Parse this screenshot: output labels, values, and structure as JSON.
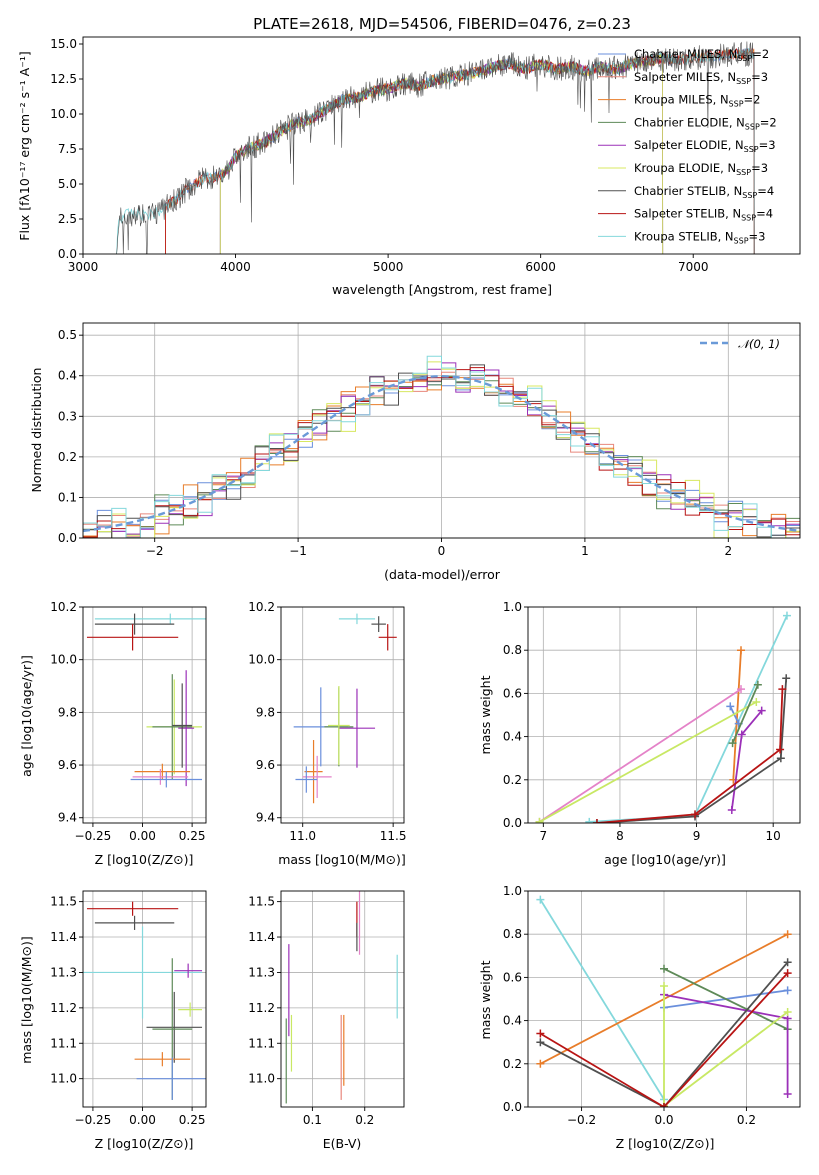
{
  "colors": {
    "chabrier_miles": "#6a8fdc",
    "salpeter_miles": "#e8877c",
    "kroupa_miles": "#e87d2a",
    "chabrier_elodie": "#5e8a58",
    "salpeter_elodie": "#9b30b8",
    "kroupa_elodie": "#d8e860",
    "chabrier_stelib": "#505050",
    "salpeter_stelib": "#b81414",
    "kroupa_stelib": "#84d8dc",
    "pink": "#e482c8",
    "lime": "#c8e864",
    "purple": "#9b30b8"
  },
  "chart_data": [
    {
      "id": "spectrum",
      "type": "line",
      "title": "PLATE=2618, MJD=54506, FIBERID=0476, z=0.23",
      "xlabel": "wavelength [Angstrom, rest frame]",
      "ylabel": "Flux [fλ10⁻¹⁷ erg cm⁻² s⁻¹ A⁻¹]",
      "xlim": [
        3000,
        7700
      ],
      "ylim": [
        0,
        15.5
      ],
      "xticks": [
        "3000",
        "4000",
        "5000",
        "6000",
        "7000"
      ],
      "yticks": [
        "0.0",
        "2.5",
        "5.0",
        "7.5",
        "10.0",
        "12.5",
        "15.0"
      ],
      "legend_position": "top-right",
      "grid": false,
      "envelope": [
        [
          3220,
          0.0
        ],
        [
          3230,
          2.4
        ],
        [
          3300,
          2.9
        ],
        [
          3400,
          2.8
        ],
        [
          3500,
          3.0
        ],
        [
          3600,
          3.8
        ],
        [
          3700,
          4.8
        ],
        [
          3800,
          5.4
        ],
        [
          3900,
          5.6
        ],
        [
          3950,
          6.0
        ],
        [
          4000,
          7.0
        ],
        [
          4100,
          7.6
        ],
        [
          4200,
          8.0
        ],
        [
          4300,
          8.8
        ],
        [
          4400,
          9.4
        ],
        [
          4500,
          9.6
        ],
        [
          4600,
          10.4
        ],
        [
          4700,
          11.0
        ],
        [
          4800,
          11.2
        ],
        [
          4900,
          11.6
        ],
        [
          5000,
          11.8
        ],
        [
          5100,
          12.2
        ],
        [
          5200,
          12.0
        ],
        [
          5300,
          12.4
        ],
        [
          5400,
          12.6
        ],
        [
          5500,
          12.8
        ],
        [
          5600,
          13.0
        ],
        [
          5700,
          13.4
        ],
        [
          5800,
          13.6
        ],
        [
          5900,
          13.2
        ],
        [
          6000,
          13.6
        ],
        [
          6100,
          13.2
        ],
        [
          6200,
          13.4
        ],
        [
          6300,
          13.0
        ],
        [
          6400,
          13.4
        ],
        [
          6500,
          13.2
        ],
        [
          6600,
          13.6
        ],
        [
          6700,
          13.8
        ],
        [
          6800,
          14.0
        ],
        [
          6900,
          13.8
        ],
        [
          7000,
          14.0
        ],
        [
          7100,
          14.1
        ],
        [
          7200,
          14.2
        ],
        [
          7300,
          14.3
        ],
        [
          7380,
          14.3
        ]
      ],
      "series_ends": [
        {
          "name": "Chabrier MILES, N$_{SSP}$=2",
          "label_text": "Chabrier MILES, N",
          "label_sub": "SSP",
          "label_tail": "=2",
          "color_key": "chabrier_miles",
          "start": 3540,
          "end": 7400
        },
        {
          "name": "Salpeter MILES, N$_{SSP}$=3",
          "label_text": "Salpeter MILES, N",
          "label_sub": "SSP",
          "label_tail": "=3",
          "color_key": "salpeter_miles",
          "start": 3540,
          "end": 7400
        },
        {
          "name": "Kroupa MILES, N$_{SSP}$=2",
          "label_text": "Kroupa MILES, N",
          "label_sub": "SSP",
          "label_tail": "=2",
          "color_key": "kroupa_miles",
          "start": 3540,
          "end": 7400
        },
        {
          "name": "Chabrier ELODIE, N$_{SSP}$=2",
          "label_text": "Chabrier ELODIE, N",
          "label_sub": "SSP",
          "label_tail": "=2",
          "color_key": "chabrier_elodie",
          "start": 3900,
          "end": 6800
        },
        {
          "name": "Salpeter ELODIE, N$_{SSP}$=3",
          "label_text": "Salpeter ELODIE, N",
          "label_sub": "SSP",
          "label_tail": "=3",
          "color_key": "salpeter_elodie",
          "start": 3900,
          "end": 6800
        },
        {
          "name": "Kroupa ELODIE, N$_{SSP}$=3",
          "label_text": "Kroupa ELODIE, N",
          "label_sub": "SSP",
          "label_tail": "=3",
          "color_key": "kroupa_elodie",
          "start": 3900,
          "end": 6800
        },
        {
          "name": "Chabrier STELIB, N$_{SSP}$=4",
          "label_text": "Chabrier STELIB, N",
          "label_sub": "SSP",
          "label_tail": "=4",
          "color_key": "chabrier_stelib",
          "start": 3220,
          "end": 7400
        },
        {
          "name": "Salpeter STELIB, N$_{SSP}$=4",
          "label_text": "Salpeter STELIB, N",
          "label_sub": "SSP",
          "label_tail": "=4",
          "color_key": "salpeter_stelib",
          "start": 3540,
          "end": 7400
        },
        {
          "name": "Kroupa STELIB, N$_{SSP}$=3",
          "label_text": "Kroupa STELIB, N",
          "label_sub": "SSP",
          "label_tail": "=3",
          "color_key": "kroupa_stelib",
          "start": 3220,
          "end": 7400
        }
      ]
    },
    {
      "id": "residuals",
      "type": "bar",
      "xlabel": "(data-model)/error",
      "ylabel": "Normed distribution",
      "xlim": [
        -2.5,
        2.5
      ],
      "ylim": [
        0,
        0.53
      ],
      "xticks": [
        "−2",
        "−1",
        "0",
        "1",
        "2"
      ],
      "yticks": [
        "0.0",
        "0.1",
        "0.2",
        "0.3",
        "0.4",
        "0.5"
      ],
      "grid": true,
      "legend_position": "top-right",
      "reference_curve": {
        "name": "𝒩(0, 1)",
        "color": "#6a9ad8"
      },
      "bin_width": 0.1,
      "bin_start": -2.5,
      "histograms": [
        {
          "color_key": "chabrier_miles",
          "offset": 0.01
        },
        {
          "color_key": "salpeter_miles",
          "offset": -0.01
        },
        {
          "color_key": "kroupa_miles",
          "offset": 0.02
        },
        {
          "color_key": "chabrier_elodie",
          "offset": -0.02
        },
        {
          "color_key": "salpeter_elodie",
          "offset": 0.015
        },
        {
          "color_key": "kroupa_elodie",
          "offset": 0.03
        },
        {
          "color_key": "chabrier_stelib",
          "offset": 0.02
        },
        {
          "color_key": "salpeter_stelib",
          "offset": 0.005
        },
        {
          "color_key": "kroupa_stelib",
          "offset": -0.015
        }
      ]
    },
    {
      "id": "age_vs_z",
      "type": "scatter",
      "xlabel": "Z [log10(Z/Z⊙)]",
      "ylabel": "age  [log10(age/yr)]",
      "xlim": [
        -0.3,
        0.32
      ],
      "ylim": [
        9.38,
        10.2
      ],
      "xticks": [
        "−0.25",
        "0.00",
        "0.25"
      ],
      "yticks": [
        "9.4",
        "9.6",
        "9.8",
        "10.0",
        "10.2"
      ],
      "grid": true,
      "points": [
        {
          "x": 0.14,
          "y": 10.155,
          "xerr": 0.38,
          "yerr": 0.02,
          "color_key": "kroupa_stelib"
        },
        {
          "x": -0.04,
          "y": 10.135,
          "xerr": 0.2,
          "yerr": 0.04,
          "color_key": "chabrier_stelib"
        },
        {
          "x": -0.05,
          "y": 10.085,
          "xerr": 0.23,
          "yerr": 0.05,
          "color_key": "salpeter_stelib"
        },
        {
          "x": 0.16,
          "y": 9.745,
          "xerr": 0.14,
          "yerr": 0.18,
          "color_key": "lime"
        },
        {
          "x": 0.15,
          "y": 9.745,
          "xerr": 0.1,
          "yerr": 0.2,
          "color_key": "chabrier_elodie"
        },
        {
          "x": 0.22,
          "y": 9.74,
          "xerr": 0.04,
          "yerr": 0.22,
          "color_key": "salpeter_elodie"
        },
        {
          "x": 0.2,
          "y": 9.75,
          "xerr": 0.05,
          "yerr": 0.16,
          "color_key": "chabrier_stelib"
        },
        {
          "x": 0.1,
          "y": 9.575,
          "xerr": 0.14,
          "yerr": 0.03,
          "color_key": "kroupa_miles"
        },
        {
          "x": 0.09,
          "y": 9.555,
          "xerr": 0.14,
          "yerr": 0.03,
          "color_key": "pink"
        },
        {
          "x": 0.12,
          "y": 9.545,
          "xerr": 0.18,
          "yerr": 0.03,
          "color_key": "chabrier_miles"
        }
      ]
    },
    {
      "id": "age_vs_mass",
      "type": "scatter",
      "xlabel": "mass [log10(M/M⊙)]",
      "xlim": [
        10.88,
        11.56
      ],
      "ylim": [
        9.38,
        10.2
      ],
      "xticks": [
        "11.0",
        "11.5"
      ],
      "yticks": [
        "9.4",
        "9.6",
        "9.8",
        "10.0",
        "10.2"
      ],
      "grid": true,
      "points": [
        {
          "x": 11.3,
          "y": 10.155,
          "xerr": 0.1,
          "yerr": 0.02,
          "color_key": "kroupa_stelib"
        },
        {
          "x": 11.42,
          "y": 10.135,
          "xerr": 0.04,
          "yerr": 0.03,
          "color_key": "chabrier_stelib"
        },
        {
          "x": 11.47,
          "y": 10.085,
          "xerr": 0.05,
          "yerr": 0.05,
          "color_key": "salpeter_stelib"
        },
        {
          "x": 11.1,
          "y": 9.745,
          "xerr": 0.15,
          "yerr": 0.15,
          "color_key": "chabrier_miles"
        },
        {
          "x": 11.2,
          "y": 9.745,
          "xerr": 0.08,
          "yerr": 0.15,
          "color_key": "chabrier_elodie"
        },
        {
          "x": 11.3,
          "y": 9.74,
          "xerr": 0.1,
          "yerr": 0.15,
          "color_key": "salpeter_elodie"
        },
        {
          "x": 11.2,
          "y": 9.75,
          "xerr": 0.06,
          "yerr": 0.15,
          "color_key": "lime"
        },
        {
          "x": 11.06,
          "y": 9.575,
          "xerr": 0.05,
          "yerr": 0.12,
          "color_key": "kroupa_miles"
        },
        {
          "x": 11.08,
          "y": 9.555,
          "xerr": 0.08,
          "yerr": 0.08,
          "color_key": "pink"
        },
        {
          "x": 11.02,
          "y": 9.545,
          "xerr": 0.06,
          "yerr": 0.05,
          "color_key": "chabrier_miles"
        }
      ]
    },
    {
      "id": "weight_vs_age",
      "type": "line",
      "xlabel": "age  [log10(age/yr)]",
      "ylabel": "mass weight",
      "xlim": [
        6.8,
        10.35
      ],
      "ylim": [
        0,
        1
      ],
      "xticks": [
        "7",
        "8",
        "9",
        "10"
      ],
      "yticks": [
        "0.0",
        "0.2",
        "0.4",
        "0.6",
        "0.8",
        "1.0"
      ],
      "grid": true,
      "series": [
        {
          "color_key": "kroupa_stelib",
          "x": [
            7.6,
            8.98,
            10.18
          ],
          "y": [
            0.005,
            0.035,
            0.96
          ]
        },
        {
          "color_key": "kroupa_miles",
          "x": [
            9.48,
            9.58
          ],
          "y": [
            0.2,
            0.8
          ]
        },
        {
          "color_key": "chabrier_miles",
          "x": [
            9.44,
            9.55
          ],
          "y": [
            0.54,
            0.46
          ]
        },
        {
          "color_key": "pink",
          "x": [
            6.95,
            9.58
          ],
          "y": [
            0.005,
            0.62
          ]
        },
        {
          "color_key": "lime",
          "x": [
            6.95,
            9.78
          ],
          "y": [
            0.005,
            0.56
          ]
        },
        {
          "color_key": "chabrier_elodie",
          "x": [
            9.47,
            9.8
          ],
          "y": [
            0.37,
            0.64
          ]
        },
        {
          "color_key": "salpeter_elodie",
          "x": [
            9.46,
            9.59,
            9.85
          ],
          "y": [
            0.06,
            0.41,
            0.52
          ]
        },
        {
          "color_key": "chabrier_stelib",
          "x": [
            7.7,
            8.98,
            10.1,
            10.17
          ],
          "y": [
            0.0,
            0.03,
            0.3,
            0.67
          ]
        },
        {
          "color_key": "salpeter_stelib",
          "x": [
            7.7,
            8.98,
            10.09,
            10.12
          ],
          "y": [
            0.0,
            0.04,
            0.34,
            0.62
          ]
        }
      ]
    },
    {
      "id": "mass_vs_z",
      "type": "scatter",
      "xlabel": "Z [log10(Z/Z⊙)]",
      "ylabel": "mass [log10(M/M⊙)]",
      "xlim": [
        -0.3,
        0.32
      ],
      "ylim": [
        10.92,
        11.53
      ],
      "xticks": [
        "−0.25",
        "0.00",
        "0.25"
      ],
      "yticks": [
        "11.0",
        "11.1",
        "11.2",
        "11.3",
        "11.4",
        "11.5"
      ],
      "grid": true,
      "points": [
        {
          "x": -0.05,
          "y": 11.48,
          "xerr": 0.23,
          "yerr": 0.02,
          "color_key": "salpeter_stelib"
        },
        {
          "x": -0.04,
          "y": 11.44,
          "xerr": 0.2,
          "yerr": 0.02,
          "color_key": "chabrier_stelib"
        },
        {
          "x": 0.0,
          "y": 11.3,
          "xerr": 0.3,
          "yerr": 0.13,
          "color_key": "kroupa_stelib"
        },
        {
          "x": 0.23,
          "y": 11.305,
          "xerr": 0.07,
          "yerr": 0.02,
          "color_key": "salpeter_elodie"
        },
        {
          "x": 0.24,
          "y": 11.195,
          "xerr": 0.06,
          "yerr": 0.02,
          "color_key": "lime"
        },
        {
          "x": 0.16,
          "y": 11.145,
          "xerr": 0.14,
          "yerr": 0.1,
          "color_key": "chabrier_stelib"
        },
        {
          "x": 0.15,
          "y": 11.14,
          "xerr": 0.1,
          "yerr": 0.2,
          "color_key": "chabrier_elodie"
        },
        {
          "x": 0.1,
          "y": 11.055,
          "xerr": 0.14,
          "yerr": 0.02,
          "color_key": "kroupa_miles"
        },
        {
          "x": 0.15,
          "y": 11.0,
          "xerr": 0.18,
          "yerr": 0.06,
          "color_key": "chabrier_miles"
        }
      ]
    },
    {
      "id": "mass_vs_ebv",
      "type": "scatter",
      "xlabel": "E(B-V)",
      "xlim": [
        0.04,
        0.275
      ],
      "ylim": [
        10.92,
        11.53
      ],
      "xticks": [
        "0.1",
        "0.2"
      ],
      "yticks": [
        "11.0",
        "11.1",
        "11.2",
        "11.3",
        "11.4",
        "11.5"
      ],
      "grid": true,
      "points": [
        {
          "x": 0.185,
          "y": 11.45,
          "xerr": 0.0,
          "yerr": 0.05,
          "color_key": "salpeter_stelib"
        },
        {
          "x": 0.185,
          "y": 11.4,
          "xerr": 0.0,
          "yerr": 0.04,
          "color_key": "chabrier_stelib"
        },
        {
          "x": 0.19,
          "y": 11.45,
          "xerr": 0.0,
          "yerr": 0.1,
          "color_key": "pink"
        },
        {
          "x": 0.055,
          "y": 11.25,
          "xerr": 0.0,
          "yerr": 0.13,
          "color_key": "salpeter_elodie"
        },
        {
          "x": 0.06,
          "y": 11.1,
          "xerr": 0.0,
          "yerr": 0.08,
          "color_key": "lime"
        },
        {
          "x": 0.05,
          "y": 11.05,
          "xerr": 0.0,
          "yerr": 0.12,
          "color_key": "chabrier_elodie"
        },
        {
          "x": 0.16,
          "y": 11.08,
          "xerr": 0.0,
          "yerr": 0.1,
          "color_key": "kroupa_miles"
        },
        {
          "x": 0.155,
          "y": 11.06,
          "xerr": 0.0,
          "yerr": 0.12,
          "color_key": "salpeter_miles"
        },
        {
          "x": 0.262,
          "y": 11.26,
          "xerr": 0.0,
          "yerr": 0.09,
          "color_key": "kroupa_stelib"
        }
      ]
    },
    {
      "id": "weight_vs_z",
      "type": "line",
      "xlabel": "Z [log10(Z/Z⊙)]",
      "ylabel": "mass weight",
      "xlim": [
        -0.33,
        0.33
      ],
      "ylim": [
        0,
        1
      ],
      "xticks": [
        "−0.2",
        "0.0",
        "0.2"
      ],
      "yticks": [
        "0.0",
        "0.2",
        "0.4",
        "0.6",
        "0.8",
        "1.0"
      ],
      "grid": true,
      "series": [
        {
          "color_key": "kroupa_stelib",
          "x": [
            -0.3,
            0.0
          ],
          "y": [
            0.96,
            0.035
          ]
        },
        {
          "color_key": "kroupa_miles",
          "x": [
            -0.3,
            0.3
          ],
          "y": [
            0.2,
            0.8
          ]
        },
        {
          "color_key": "chabrier_miles",
          "x": [
            0.0,
            0.3
          ],
          "y": [
            0.46,
            0.54
          ]
        },
        {
          "color_key": "chabrier_elodie",
          "x": [
            0.0,
            0.3
          ],
          "y": [
            0.64,
            0.36
          ]
        },
        {
          "color_key": "salpeter_elodie",
          "x": [
            0.0,
            0.3,
            0.3
          ],
          "y": [
            0.52,
            0.41,
            0.06
          ]
        },
        {
          "color_key": "lime",
          "x": [
            0.0,
            0.0,
            0.3
          ],
          "y": [
            0.56,
            0.005,
            0.44
          ]
        },
        {
          "color_key": "chabrier_stelib",
          "x": [
            -0.3,
            0.0,
            0.3
          ],
          "y": [
            0.3,
            0.0,
            0.67
          ]
        },
        {
          "color_key": "salpeter_stelib",
          "x": [
            -0.3,
            0.0,
            0.3
          ],
          "y": [
            0.34,
            0.0,
            0.62
          ]
        }
      ]
    }
  ]
}
